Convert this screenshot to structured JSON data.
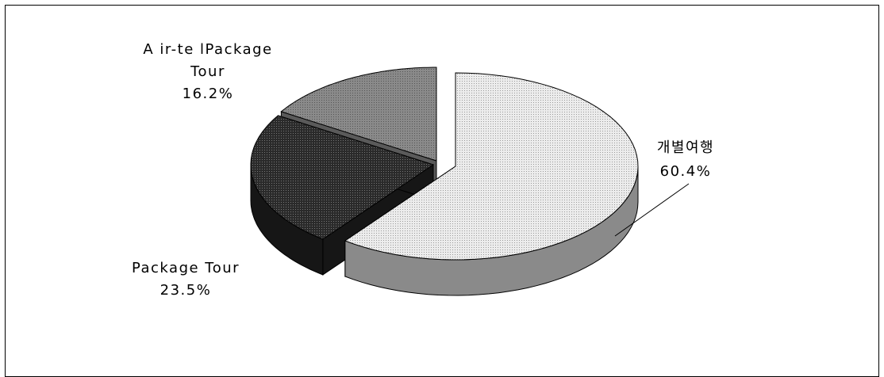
{
  "chart_data": {
    "type": "pie",
    "style": "3d-exploded",
    "slices": [
      {
        "label": "개별여행",
        "value": 60.4,
        "value_text": "60.4%",
        "color": "#dedede",
        "side": "#8a8a8a"
      },
      {
        "label": "Package Tour",
        "value": 23.5,
        "value_text": "23.5%",
        "color": "#383838",
        "side": "#161616"
      },
      {
        "label": "A ir-te lPackage Tour",
        "label_lines": [
          "A ir-te lPackage",
          "Tour"
        ],
        "value": 16.2,
        "value_text": "16.2%",
        "color": "#8c8c8c",
        "side": "#5a5a5a"
      }
    ]
  }
}
